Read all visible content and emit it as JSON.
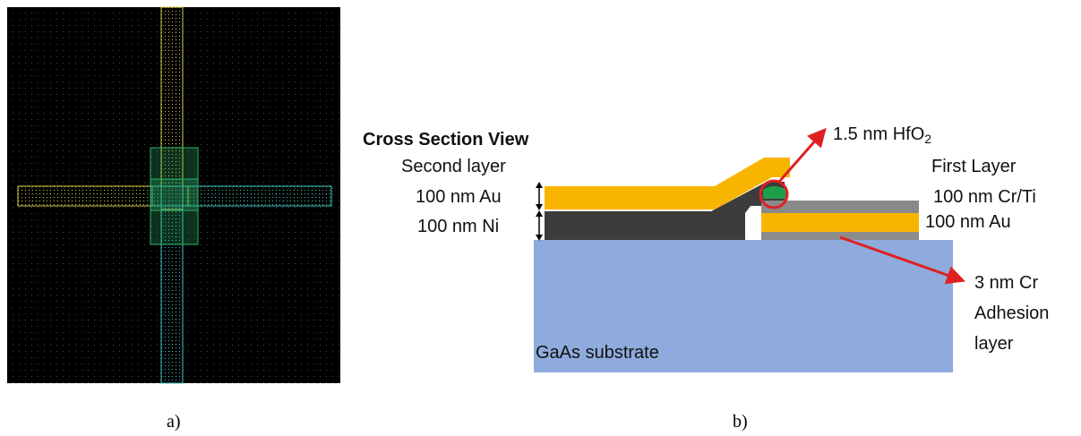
{
  "panel_a": {
    "caption": "a)"
  },
  "panel_b": {
    "caption": "b)",
    "title": "Cross Section  View",
    "labels": {
      "second_layer": "Second layer",
      "au_top": "100 nm Au",
      "ni": "100 nm Ni",
      "hfo2": "1.5 nm HfO",
      "hfo2_sub": "2",
      "first_layer": "First Layer",
      "cr_ti": "100 nm Cr/Ti",
      "au_bottom": "100 nm Au",
      "cr_adhesion_1": "3 nm Cr",
      "cr_adhesion_2": "Adhesion",
      "cr_adhesion_3": "layer",
      "substrate": "GaAs substrate"
    }
  },
  "colors": {
    "layout_bg": "#000000",
    "layout_yellow": "#d8c84a",
    "layout_cyan": "#3fc4c4",
    "layout_green": "#2fb06a",
    "gold": "#f7b500",
    "nickel": "#3c3c3c",
    "cr_ti": "#8a8a8a",
    "cr_thin": "#8c8c8c",
    "hfo2": "#1f9e4a",
    "substrate": "#8faadc",
    "arrow": "#e02020"
  }
}
